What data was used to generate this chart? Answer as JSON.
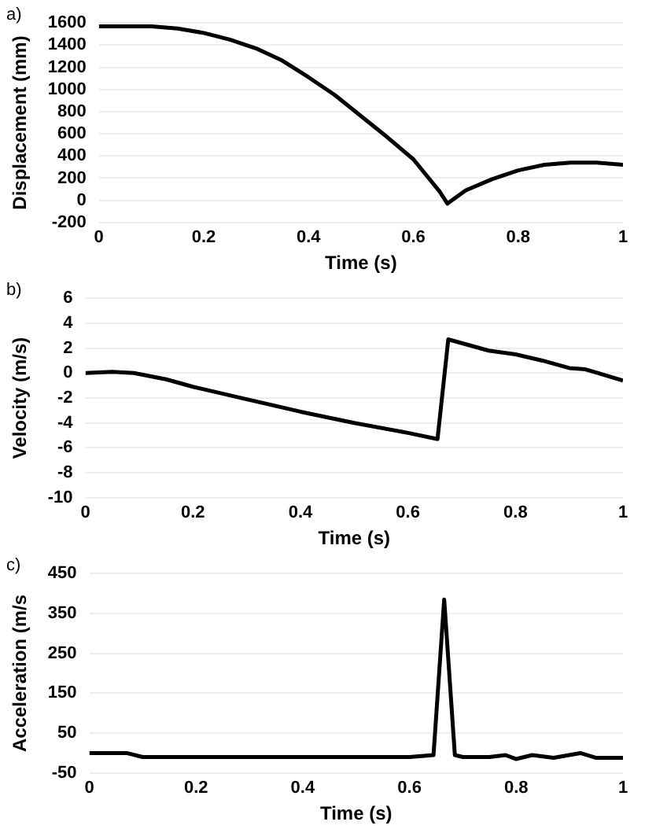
{
  "chart_data": [
    {
      "type": "line",
      "xlabel": "Time (s)",
      "ylabel": "Displacement (mm)",
      "annotations": [
        "a)"
      ],
      "grid": "y",
      "marker": "none",
      "line_style": "solid",
      "xlim": [
        0,
        1
      ],
      "xticks": [
        0,
        0.2,
        0.4,
        0.6,
        0.8,
        1
      ],
      "ylim": [
        -200,
        1600
      ],
      "yticks": [
        -200,
        0,
        200,
        400,
        600,
        800,
        1000,
        1200,
        1400,
        1600
      ],
      "series": [
        {
          "color": "#000000",
          "x": [
            0,
            0.1,
            0.15,
            0.2,
            0.25,
            0.3,
            0.35,
            0.4,
            0.45,
            0.5,
            0.55,
            0.6,
            0.65,
            0.665,
            0.7,
            0.75,
            0.8,
            0.85,
            0.9,
            0.95,
            1
          ],
          "values": [
            1570,
            1570,
            1550,
            1510,
            1450,
            1370,
            1260,
            1110,
            950,
            760,
            570,
            370,
            80,
            -30,
            90,
            190,
            270,
            320,
            340,
            340,
            320
          ]
        }
      ]
    },
    {
      "type": "line",
      "xlabel": "Time (s)",
      "ylabel": "Velocity (m/s)",
      "annotations": [
        "b)"
      ],
      "grid": "y",
      "marker": "none",
      "line_style": "solid",
      "xlim": [
        0,
        1
      ],
      "xticks": [
        0,
        0.2,
        0.4,
        0.6,
        0.8,
        1
      ],
      "ylim": [
        -10,
        6
      ],
      "yticks": [
        -10,
        -8,
        -6,
        -4,
        -2,
        0,
        2,
        4,
        6
      ],
      "series": [
        {
          "color": "#000000",
          "x": [
            0,
            0.05,
            0.09,
            0.15,
            0.2,
            0.3,
            0.4,
            0.5,
            0.6,
            0.655,
            0.675,
            0.7,
            0.75,
            0.8,
            0.85,
            0.9,
            0.93,
            1
          ],
          "values": [
            0,
            0.1,
            0,
            -0.5,
            -1.1,
            -2.1,
            -3.1,
            -4,
            -4.8,
            -5.3,
            2.7,
            2.4,
            1.8,
            1.5,
            1,
            0.4,
            0.3,
            -0.6
          ]
        }
      ]
    },
    {
      "type": "line",
      "xlabel": "Time (s)",
      "ylabel": "Acceleration (m/s",
      "annotations": [
        "c)"
      ],
      "grid": "y",
      "marker": "none",
      "line_style": "solid",
      "xlim": [
        0,
        1
      ],
      "xticks": [
        0,
        0.2,
        0.4,
        0.6,
        0.8,
        1
      ],
      "ylim": [
        -50,
        450
      ],
      "yticks": [
        -50,
        50,
        150,
        250,
        350,
        450
      ],
      "series": [
        {
          "color": "#000000",
          "x": [
            0,
            0.07,
            0.1,
            0.2,
            0.4,
            0.6,
            0.645,
            0.665,
            0.685,
            0.7,
            0.75,
            0.78,
            0.8,
            0.83,
            0.87,
            0.92,
            0.95,
            1
          ],
          "values": [
            0,
            0,
            -10,
            -10,
            -10,
            -10,
            -5,
            385,
            -5,
            -10,
            -10,
            -5,
            -15,
            -5,
            -12,
            0,
            -12,
            -12
          ]
        }
      ]
    }
  ]
}
